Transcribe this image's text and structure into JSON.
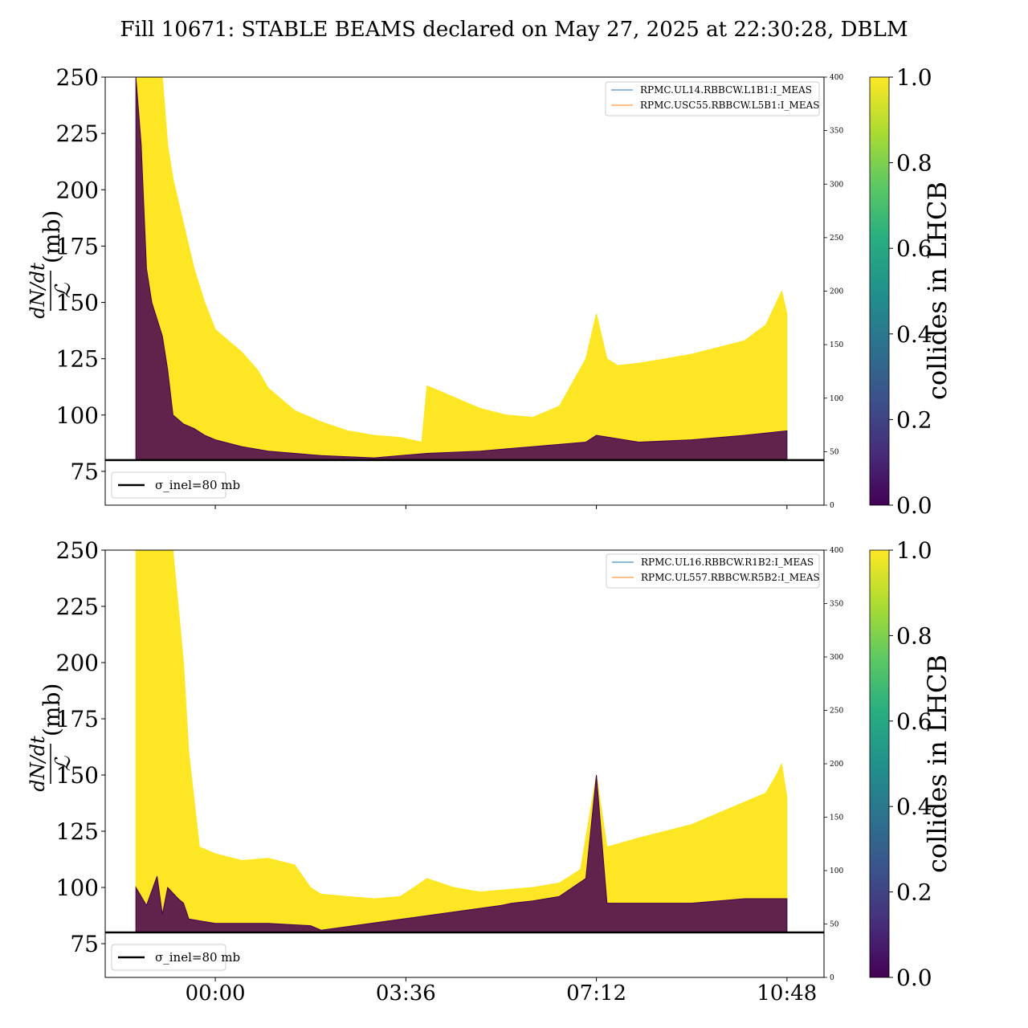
{
  "title": "Fill 10671: STABLE BEAMS declared on May 27, 2025 at 22:30:28, DBLM",
  "colormap": {
    "name": "viridis",
    "low": "#440154",
    "mid": "#21918c",
    "high": "#fde725"
  },
  "chart_data": [
    {
      "type": "area",
      "panel": "top",
      "ylabel": "dN/dt / ℒ (mb)",
      "ylim": [
        60,
        250
      ],
      "yticks": [
        75,
        100,
        125,
        150,
        175,
        200,
        225,
        250
      ],
      "xticks": [
        "",
        "",
        "",
        ""
      ],
      "xtick_hours": [
        0,
        3.6,
        7.2,
        10.8
      ],
      "xlim_hours": [
        -2.08,
        11.5
      ],
      "secondary_ylim": [
        0,
        400
      ],
      "secondary_yticks": [
        0,
        50,
        100,
        150,
        200,
        250,
        300,
        350,
        400
      ],
      "colorbar_label": "collides in LHCB",
      "colorbar_ticks": [
        "0.0",
        "0.2",
        "0.4",
        "0.6",
        "0.8",
        "1.0"
      ],
      "legend_series": [
        "RPMC.UL14.RBBCW.L1B1:I_MEAS",
        "RPMC.USC55.RBBCW.L5B1:I_MEAS"
      ],
      "legend_reference": "σ_inel=80 mb",
      "reference_line": 80,
      "series": [
        {
          "name": "colliding (1.0)",
          "x": [
            -1.5,
            -1.3,
            -1.0,
            -0.9,
            -0.8,
            -0.6,
            -0.4,
            -0.2,
            0,
            0.5,
            0.8,
            1.0,
            1.5,
            2.0,
            2.5,
            3.0,
            3.5,
            3.9,
            4.0,
            4.5,
            5.0,
            5.5,
            6.0,
            6.5,
            7.0,
            7.2,
            7.4,
            7.6,
            8.0,
            8.5,
            9.0,
            9.5,
            10.0,
            10.4,
            10.6,
            10.7,
            10.8
          ],
          "y": [
            250,
            250,
            250,
            220,
            205,
            185,
            165,
            150,
            138,
            128,
            120,
            112,
            102,
            97,
            93,
            91,
            90,
            88,
            113,
            108,
            103,
            100,
            99,
            104,
            125,
            145,
            125,
            122,
            123,
            125,
            127,
            130,
            133,
            140,
            150,
            155,
            145
          ],
          "color": "#fde725"
        },
        {
          "name": "non-colliding (0.0)",
          "x": [
            -1.5,
            -1.4,
            -1.3,
            -1.2,
            -1.0,
            -0.9,
            -0.8,
            -0.6,
            -0.4,
            -0.2,
            0,
            0.5,
            1.0,
            2.0,
            3.0,
            4.0,
            5.0,
            6.0,
            7.0,
            7.2,
            8.0,
            9.0,
            10.0,
            10.8
          ],
          "y": [
            250,
            220,
            165,
            150,
            135,
            120,
            100,
            96,
            94,
            91,
            89,
            86,
            84,
            82,
            81,
            83,
            84,
            86,
            88,
            91,
            88,
            89,
            91,
            93
          ],
          "color": "#440154"
        }
      ]
    },
    {
      "type": "area",
      "panel": "bottom",
      "ylabel": "dN/dt / ℒ (mb)",
      "ylim": [
        60,
        250
      ],
      "yticks": [
        75,
        100,
        125,
        150,
        175,
        200,
        225,
        250
      ],
      "xticks": [
        "00:00",
        "03:36",
        "07:12",
        "10:48"
      ],
      "xtick_hours": [
        0,
        3.6,
        7.2,
        10.8
      ],
      "xlim_hours": [
        -2.08,
        11.5
      ],
      "secondary_ylim": [
        0,
        400
      ],
      "secondary_yticks": [
        0,
        50,
        100,
        150,
        200,
        250,
        300,
        350,
        400
      ],
      "colorbar_label": "collides in LHCB",
      "colorbar_ticks": [
        "0.0",
        "0.2",
        "0.4",
        "0.6",
        "0.8",
        "1.0"
      ],
      "legend_series": [
        "RPMC.UL16.RBBCW.R1B2:I_MEAS",
        "RPMC.UL557.RBBCW.R5B2:I_MEAS"
      ],
      "legend_reference": "σ_inel=80 mb",
      "reference_line": 80,
      "series": [
        {
          "name": "colliding (1.0)",
          "x": [
            -1.5,
            -1.3,
            -1.0,
            -0.8,
            -0.6,
            -0.5,
            -0.3,
            0,
            0.5,
            1.0,
            1.5,
            1.8,
            2.0,
            2.5,
            3.0,
            3.5,
            4.0,
            4.5,
            5.0,
            5.5,
            6.0,
            6.5,
            6.9,
            7.2,
            7.4,
            8.0,
            8.5,
            9.0,
            9.5,
            10.0,
            10.4,
            10.6,
            10.7,
            10.8
          ],
          "y": [
            250,
            250,
            250,
            250,
            200,
            160,
            118,
            115,
            112,
            113,
            110,
            100,
            97,
            96,
            95,
            96,
            104,
            100,
            98,
            99,
            100,
            102,
            108,
            150,
            118,
            122,
            125,
            128,
            133,
            138,
            142,
            150,
            155,
            140
          ],
          "color": "#fde725"
        },
        {
          "name": "non-colliding (0.0)",
          "x": [
            -1.5,
            -1.3,
            -1.1,
            -1.0,
            -0.9,
            -0.7,
            -0.6,
            -0.5,
            0,
            1.0,
            1.8,
            2.0,
            5.4,
            5.6,
            6.0,
            6.5,
            7.0,
            7.2,
            7.4,
            8.0,
            9.0,
            10.0,
            10.8
          ],
          "y": [
            100,
            92,
            105,
            88,
            100,
            95,
            93,
            86,
            84,
            84,
            83,
            81,
            92,
            93,
            94,
            96,
            104,
            150,
            93,
            93,
            93,
            95,
            95
          ],
          "color": "#440154"
        }
      ]
    }
  ]
}
